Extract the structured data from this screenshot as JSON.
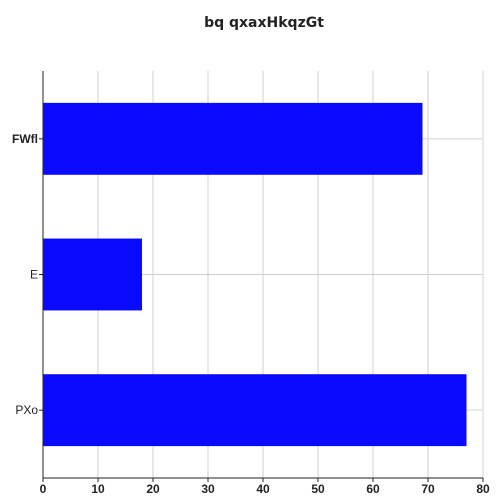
{
  "chart_data": {
    "type": "bar",
    "orientation": "horizontal",
    "title": "bq qxaxHkqzGt",
    "xlabel": "",
    "ylabel": "",
    "categories": [
      "FWfl",
      "E",
      "PXo"
    ],
    "values": [
      69,
      18,
      77
    ],
    "xlim": [
      0,
      80
    ],
    "xticks": [
      "0",
      "10",
      "20",
      "30",
      "40",
      "50",
      "60",
      "70",
      "80"
    ],
    "grid": true,
    "bar_color": "#0a0aff",
    "grid_color": "#d0d0d0",
    "axis_color": "#222222",
    "bold_category_index": 0
  }
}
